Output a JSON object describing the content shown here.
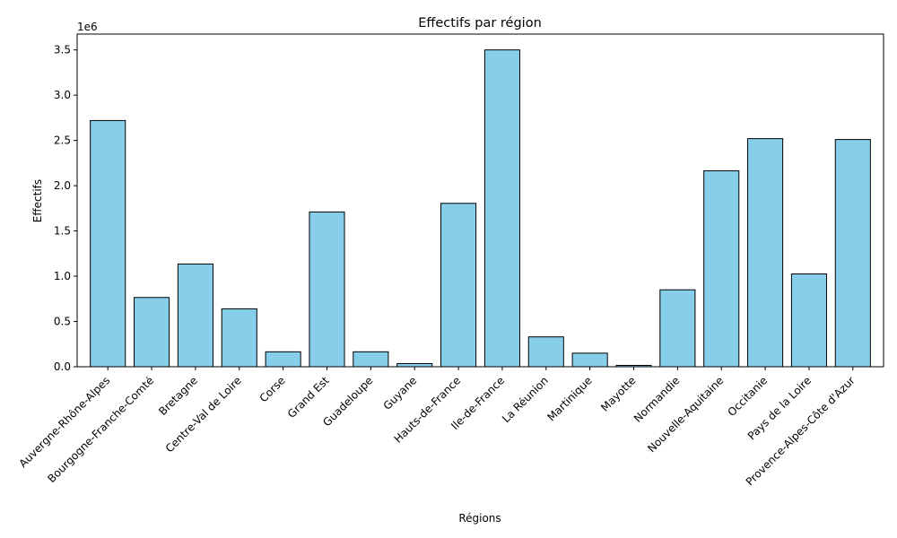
{
  "chart_data": {
    "type": "bar",
    "title": "Effectifs par région",
    "xlabel": "Régions",
    "ylabel": "Effectifs",
    "y_offset_label": "1e6",
    "categories": [
      "Auvergne-Rhône-Alpes",
      "Bourgogne-Franche-Comté",
      "Bretagne",
      "Centre-Val de Loire",
      "Corse",
      "Grand Est",
      "Guadeloupe",
      "Guyane",
      "Hauts-de-France",
      "Ile-de-France",
      "La Réunion",
      "Martinique",
      "Mayotte",
      "Normandie",
      "Nouvelle-Aquitaine",
      "Occitanie",
      "Pays de la Loire",
      "Provence-Alpes-Côte d'Azur"
    ],
    "values": [
      2720000,
      765000,
      1135000,
      640000,
      165000,
      1710000,
      165000,
      35000,
      1805000,
      3500000,
      330000,
      150000,
      15000,
      850000,
      2165000,
      2520000,
      1025000,
      2510000
    ],
    "ylim": [
      0,
      3675000
    ],
    "yticks": [
      0,
      500000,
      1000000,
      1500000,
      2000000,
      2500000,
      3000000,
      3500000
    ],
    "ytick_labels": [
      "0.0",
      "0.5",
      "1.0",
      "1.5",
      "2.0",
      "2.5",
      "3.0",
      "3.5"
    ],
    "bar_color": "#87CEEB",
    "edge_color": "#000000",
    "grid": false,
    "legend": "none"
  }
}
